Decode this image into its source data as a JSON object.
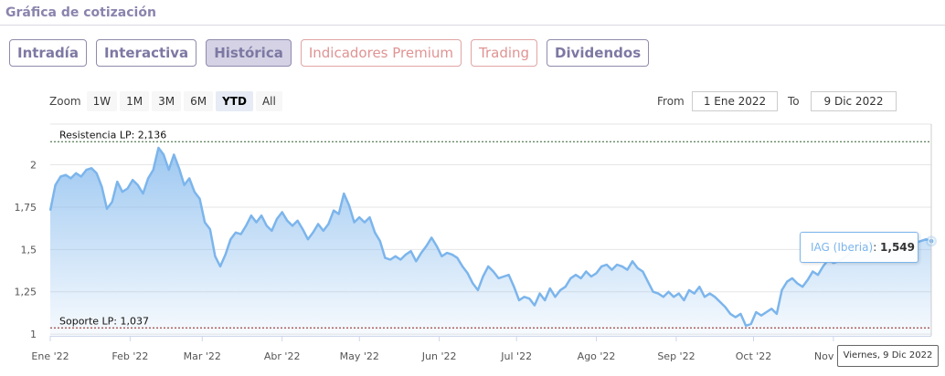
{
  "header": {
    "title": "Gráfica de cotización"
  },
  "tabs": [
    {
      "label": "Intradía",
      "state": "normal"
    },
    {
      "label": "Interactiva",
      "state": "normal"
    },
    {
      "label": "Histórica",
      "state": "active"
    },
    {
      "label": "Indicadores Premium",
      "state": "premium"
    },
    {
      "label": "Trading",
      "state": "premium"
    },
    {
      "label": "Dividendos",
      "state": "normal"
    }
  ],
  "zoom": {
    "label": "Zoom",
    "buttons": [
      "1W",
      "1M",
      "3M",
      "6M",
      "YTD",
      "All"
    ],
    "selected": "YTD"
  },
  "range": {
    "from_label": "From",
    "from_value": "1 Ene 2022",
    "to_label": "To",
    "to_value": "9 Dic 2022"
  },
  "tooltip": {
    "series_name": "IAG (Iberia)",
    "value": "1,549",
    "date": "Viernes, 9 Dic 2022"
  },
  "colors": {
    "line": "#7cb5ec",
    "resistance": "#2e5e2e",
    "support": "#8b1a1a",
    "tab_text": "#7d78a3",
    "premium_text": "#e09393"
  },
  "chart_data": {
    "type": "area",
    "ylim": [
      0.99,
      2.24
    ],
    "yticks": [
      {
        "value": 1,
        "label": "1"
      },
      {
        "value": 1.25,
        "label": "1,25"
      },
      {
        "value": 1.5,
        "label": "1,5"
      },
      {
        "value": 1.75,
        "label": "1,75"
      },
      {
        "value": 2,
        "label": "2"
      }
    ],
    "xlim": [
      0,
      342
    ],
    "xticks": [
      {
        "day": 0,
        "label": "Ene '22"
      },
      {
        "day": 31,
        "label": "Feb '22"
      },
      {
        "day": 59,
        "label": "Mar '22"
      },
      {
        "day": 90,
        "label": "Abr '22"
      },
      {
        "day": 120,
        "label": "May '22"
      },
      {
        "day": 151,
        "label": "Jun '22"
      },
      {
        "day": 181,
        "label": "Jul '22"
      },
      {
        "day": 212,
        "label": "Ago '22"
      },
      {
        "day": 243,
        "label": "Sep '22"
      },
      {
        "day": 273,
        "label": "Oct '22"
      },
      {
        "day": 304,
        "label": "Nov '22"
      }
    ],
    "resistance": {
      "value": 2.136,
      "label": "Resistencia LP: 2,136"
    },
    "support": {
      "value": 1.037,
      "label": "Soporte LP: 1,037"
    },
    "series": [
      {
        "name": "IAG (Iberia)",
        "points": [
          [
            0,
            1.73
          ],
          [
            2,
            1.88
          ],
          [
            4,
            1.93
          ],
          [
            6,
            1.94
          ],
          [
            8,
            1.92
          ],
          [
            10,
            1.95
          ],
          [
            12,
            1.93
          ],
          [
            14,
            1.97
          ],
          [
            16,
            1.98
          ],
          [
            18,
            1.95
          ],
          [
            20,
            1.87
          ],
          [
            22,
            1.74
          ],
          [
            24,
            1.78
          ],
          [
            26,
            1.9
          ],
          [
            28,
            1.84
          ],
          [
            30,
            1.86
          ],
          [
            32,
            1.91
          ],
          [
            34,
            1.88
          ],
          [
            36,
            1.83
          ],
          [
            38,
            1.92
          ],
          [
            40,
            1.97
          ],
          [
            42,
            2.1
          ],
          [
            44,
            2.06
          ],
          [
            46,
            1.97
          ],
          [
            48,
            2.06
          ],
          [
            50,
            1.98
          ],
          [
            52,
            1.88
          ],
          [
            54,
            1.92
          ],
          [
            56,
            1.84
          ],
          [
            58,
            1.8
          ],
          [
            60,
            1.66
          ],
          [
            62,
            1.62
          ],
          [
            64,
            1.46
          ],
          [
            66,
            1.4
          ],
          [
            68,
            1.47
          ],
          [
            70,
            1.56
          ],
          [
            72,
            1.6
          ],
          [
            74,
            1.59
          ],
          [
            76,
            1.64
          ],
          [
            78,
            1.7
          ],
          [
            80,
            1.66
          ],
          [
            82,
            1.7
          ],
          [
            84,
            1.64
          ],
          [
            86,
            1.61
          ],
          [
            88,
            1.68
          ],
          [
            90,
            1.72
          ],
          [
            92,
            1.67
          ],
          [
            94,
            1.64
          ],
          [
            96,
            1.67
          ],
          [
            98,
            1.62
          ],
          [
            100,
            1.56
          ],
          [
            102,
            1.6
          ],
          [
            104,
            1.65
          ],
          [
            106,
            1.61
          ],
          [
            108,
            1.65
          ],
          [
            110,
            1.73
          ],
          [
            112,
            1.71
          ],
          [
            114,
            1.83
          ],
          [
            116,
            1.76
          ],
          [
            118,
            1.66
          ],
          [
            120,
            1.69
          ],
          [
            122,
            1.66
          ],
          [
            124,
            1.69
          ],
          [
            126,
            1.6
          ],
          [
            128,
            1.55
          ],
          [
            130,
            1.45
          ],
          [
            132,
            1.44
          ],
          [
            134,
            1.46
          ],
          [
            136,
            1.44
          ],
          [
            138,
            1.47
          ],
          [
            140,
            1.49
          ],
          [
            142,
            1.43
          ],
          [
            144,
            1.48
          ],
          [
            146,
            1.52
          ],
          [
            148,
            1.57
          ],
          [
            150,
            1.52
          ],
          [
            152,
            1.46
          ],
          [
            154,
            1.48
          ],
          [
            156,
            1.47
          ],
          [
            158,
            1.45
          ],
          [
            160,
            1.4
          ],
          [
            162,
            1.36
          ],
          [
            164,
            1.3
          ],
          [
            166,
            1.26
          ],
          [
            168,
            1.34
          ],
          [
            170,
            1.4
          ],
          [
            172,
            1.37
          ],
          [
            174,
            1.33
          ],
          [
            176,
            1.34
          ],
          [
            178,
            1.35
          ],
          [
            180,
            1.28
          ],
          [
            182,
            1.2
          ],
          [
            184,
            1.22
          ],
          [
            186,
            1.21
          ],
          [
            188,
            1.17
          ],
          [
            190,
            1.24
          ],
          [
            192,
            1.2
          ],
          [
            194,
            1.27
          ],
          [
            196,
            1.22
          ],
          [
            198,
            1.26
          ],
          [
            200,
            1.28
          ],
          [
            202,
            1.33
          ],
          [
            204,
            1.35
          ],
          [
            206,
            1.33
          ],
          [
            208,
            1.37
          ],
          [
            210,
            1.34
          ],
          [
            212,
            1.36
          ],
          [
            214,
            1.4
          ],
          [
            216,
            1.41
          ],
          [
            218,
            1.38
          ],
          [
            220,
            1.41
          ],
          [
            222,
            1.4
          ],
          [
            224,
            1.38
          ],
          [
            226,
            1.43
          ],
          [
            228,
            1.39
          ],
          [
            230,
            1.37
          ],
          [
            232,
            1.31
          ],
          [
            234,
            1.25
          ],
          [
            236,
            1.24
          ],
          [
            238,
            1.22
          ],
          [
            240,
            1.25
          ],
          [
            242,
            1.22
          ],
          [
            244,
            1.24
          ],
          [
            246,
            1.2
          ],
          [
            248,
            1.26
          ],
          [
            250,
            1.24
          ],
          [
            252,
            1.28
          ],
          [
            254,
            1.22
          ],
          [
            256,
            1.24
          ],
          [
            258,
            1.22
          ],
          [
            260,
            1.19
          ],
          [
            262,
            1.16
          ],
          [
            264,
            1.12
          ],
          [
            266,
            1.1
          ],
          [
            268,
            1.12
          ],
          [
            270,
            1.05
          ],
          [
            272,
            1.06
          ],
          [
            274,
            1.13
          ],
          [
            276,
            1.11
          ],
          [
            278,
            1.13
          ],
          [
            280,
            1.15
          ],
          [
            282,
            1.12
          ],
          [
            284,
            1.26
          ],
          [
            286,
            1.31
          ],
          [
            288,
            1.33
          ],
          [
            290,
            1.3
          ],
          [
            292,
            1.28
          ],
          [
            294,
            1.32
          ],
          [
            296,
            1.37
          ],
          [
            298,
            1.35
          ],
          [
            300,
            1.4
          ],
          [
            302,
            1.44
          ],
          [
            304,
            1.42
          ],
          [
            306,
            1.43
          ],
          [
            308,
            1.45
          ],
          [
            310,
            1.47
          ],
          [
            312,
            1.52
          ],
          [
            314,
            1.5
          ],
          [
            316,
            1.53
          ],
          [
            318,
            1.55
          ],
          [
            320,
            1.53
          ],
          [
            322,
            1.52
          ],
          [
            324,
            1.51
          ],
          [
            326,
            1.53
          ],
          [
            328,
            1.54
          ],
          [
            330,
            1.52
          ],
          [
            332,
            1.53
          ],
          [
            334,
            1.55
          ],
          [
            336,
            1.54
          ],
          [
            338,
            1.55
          ],
          [
            340,
            1.56
          ],
          [
            342,
            1.549
          ]
        ]
      }
    ]
  }
}
